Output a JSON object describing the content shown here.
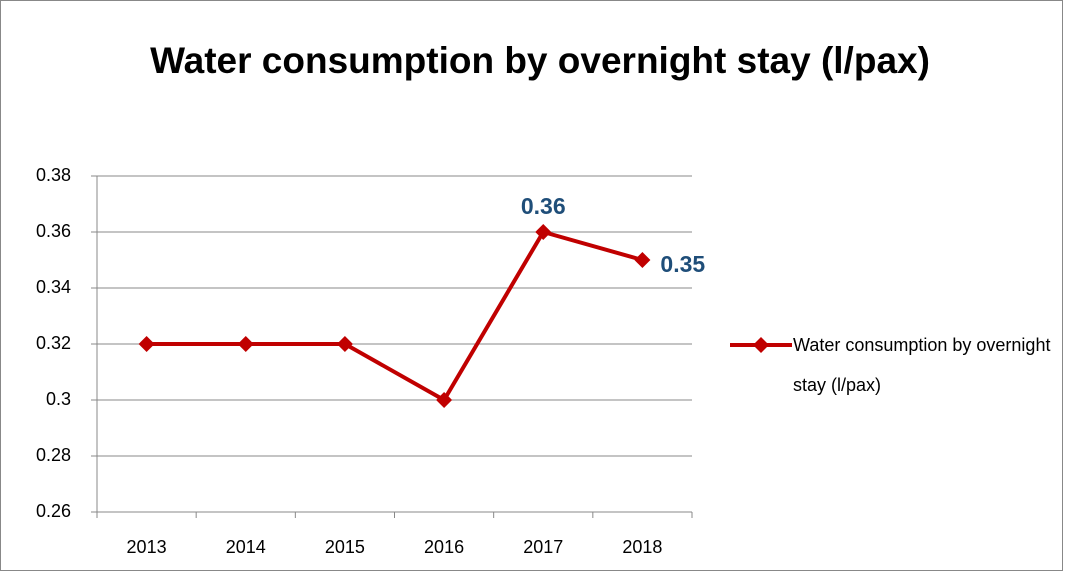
{
  "chart_data": {
    "type": "line",
    "title": "Water consumption by overnight stay (l/pax)",
    "categories": [
      "2013",
      "2014",
      "2015",
      "2016",
      "2017",
      "2018"
    ],
    "series": [
      {
        "name": "Water consumption by overnight stay (l/pax)",
        "color": "#c00000",
        "values": [
          0.32,
          0.32,
          0.32,
          0.3,
          0.36,
          0.35
        ],
        "value_labels": [
          null,
          null,
          null,
          null,
          "0.36",
          "0.35"
        ],
        "label_color": "#1f4e79"
      }
    ],
    "ylim": [
      0.26,
      0.38
    ],
    "yticks": [
      0.26,
      0.28,
      0.3,
      0.32,
      0.34,
      0.36,
      0.38
    ],
    "grid": true,
    "legend": "right"
  }
}
